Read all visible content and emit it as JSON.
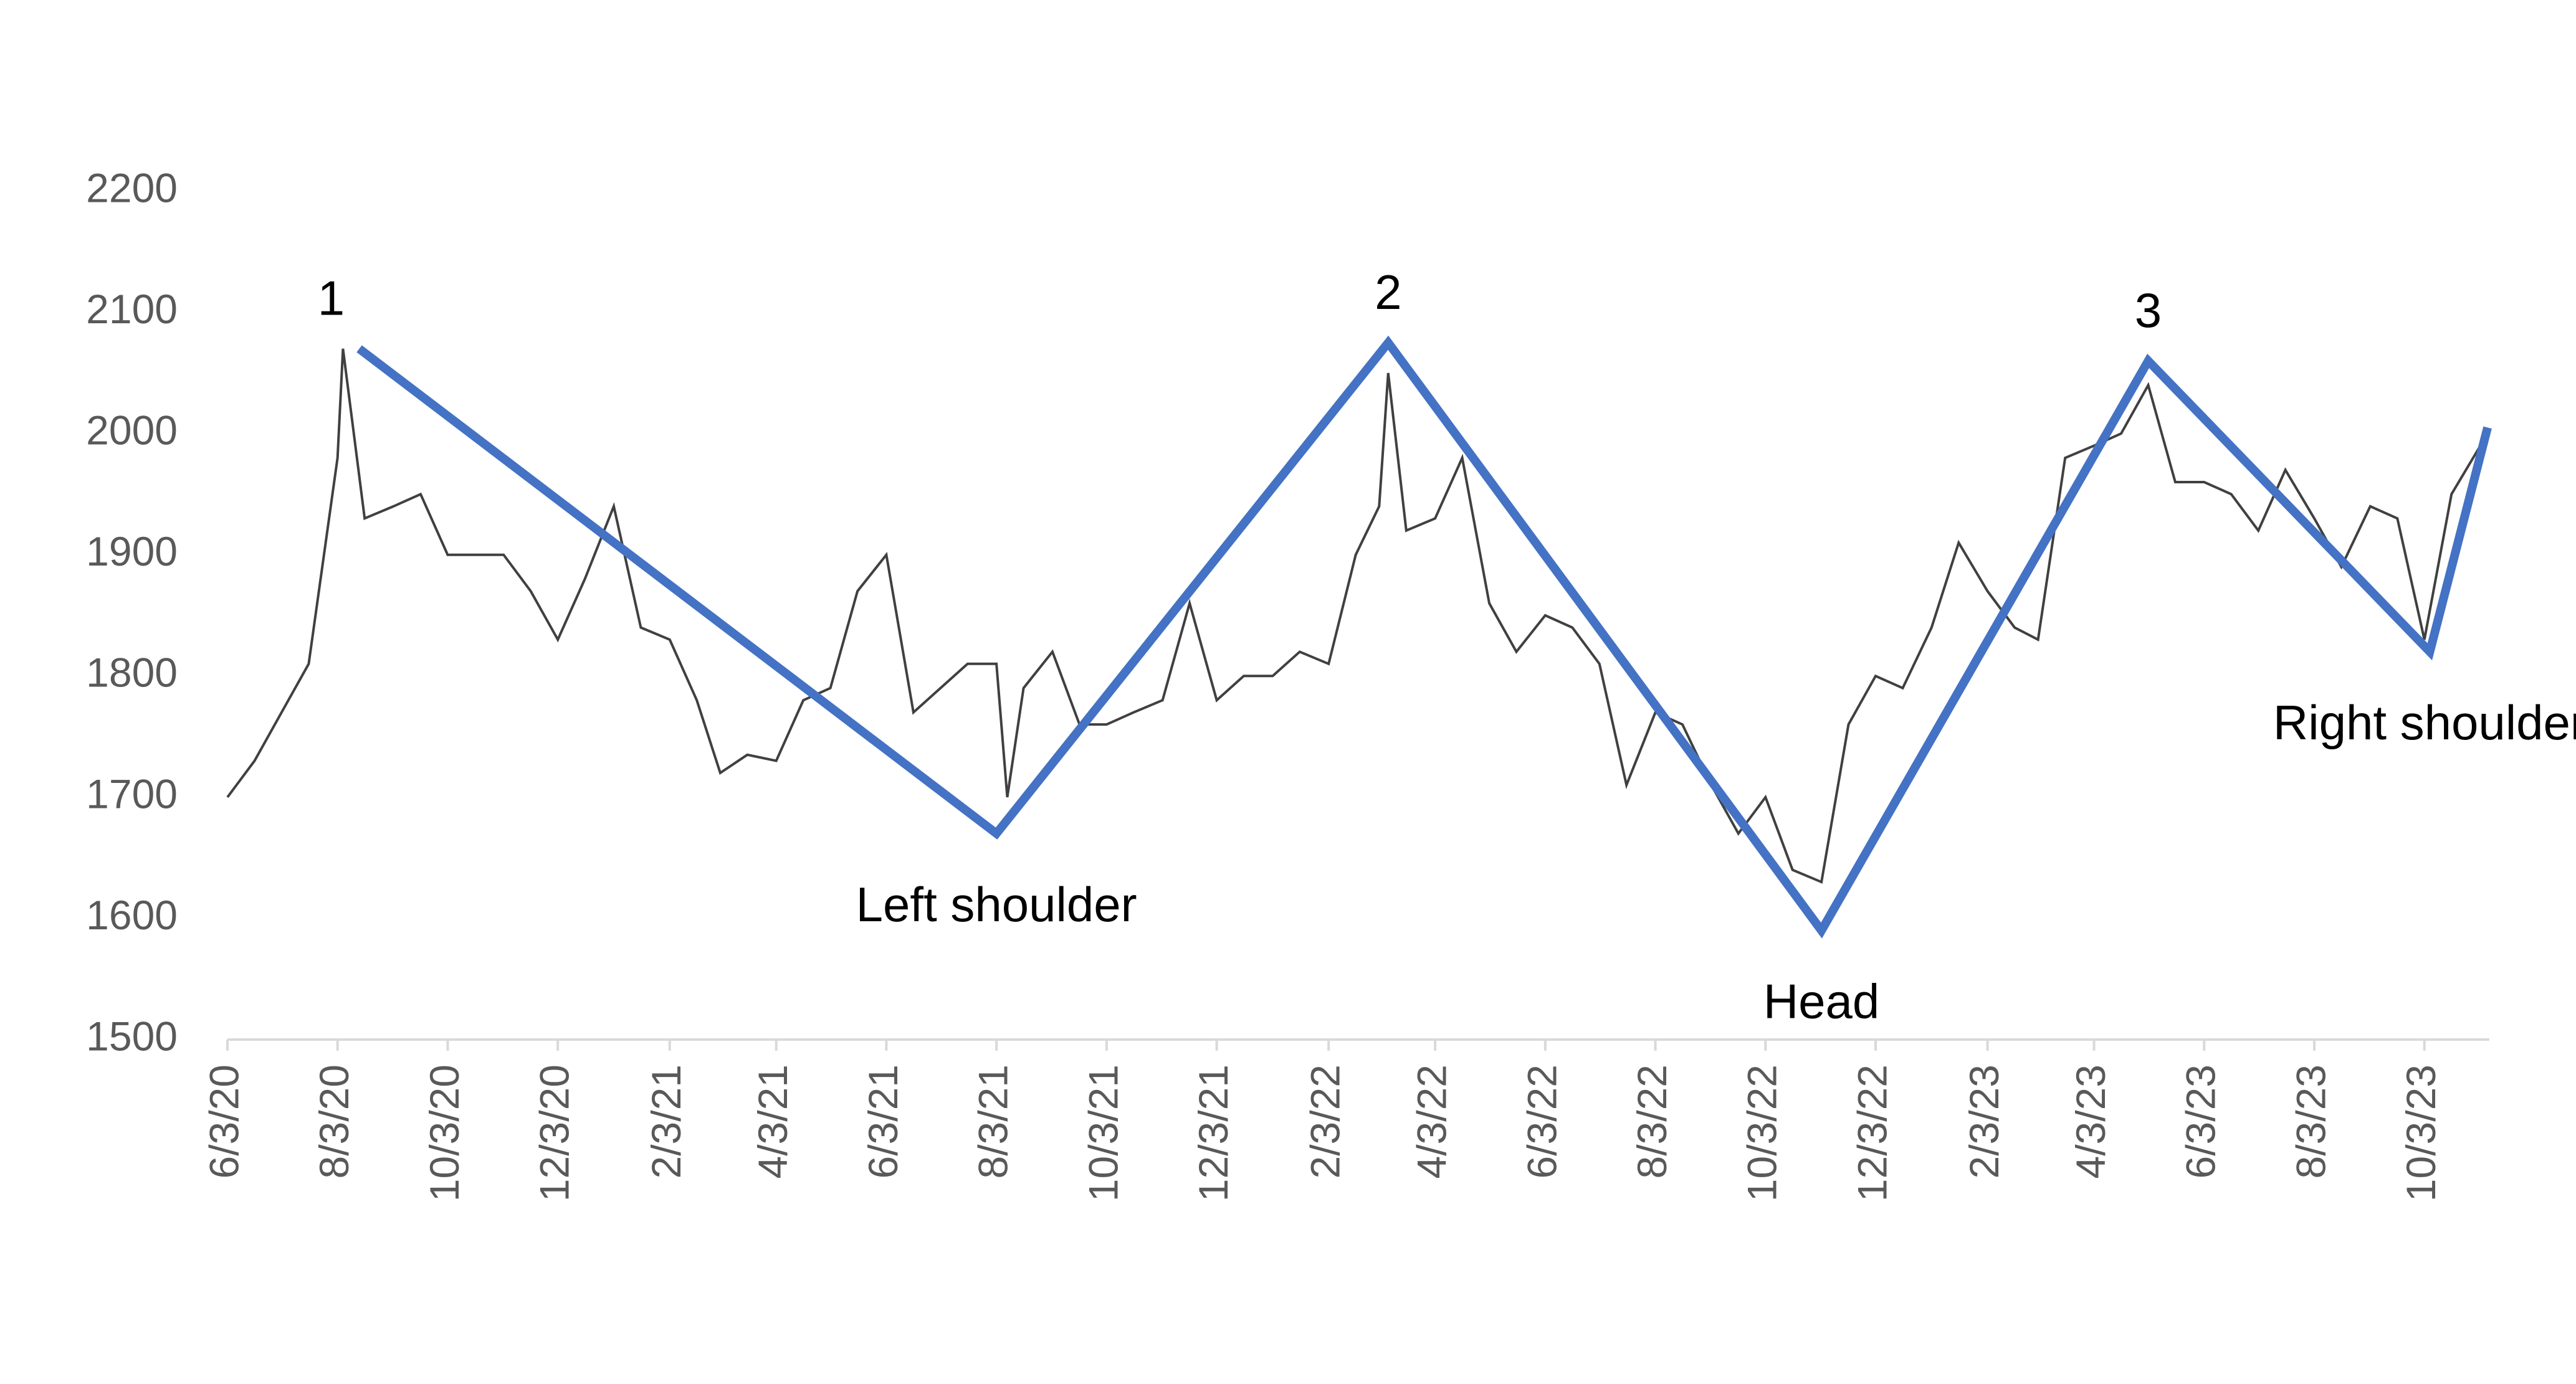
{
  "chart_data": {
    "type": "line",
    "ylim": [
      1500,
      2200
    ],
    "yticks": [
      1500,
      1600,
      1700,
      1800,
      1900,
      2000,
      2100,
      2200
    ],
    "xlim": [
      "6/3/20",
      "11/8/23"
    ],
    "xticks": [
      "6/3/20",
      "8/3/20",
      "10/3/20",
      "12/3/20",
      "2/3/21",
      "4/3/21",
      "6/3/21",
      "8/3/21",
      "10/3/21",
      "12/3/21",
      "2/3/22",
      "4/3/22",
      "6/3/22",
      "8/3/22",
      "10/3/22",
      "12/3/22",
      "2/3/23",
      "4/3/23",
      "6/3/23",
      "8/3/23",
      "10/3/23"
    ],
    "series": [
      {
        "color": "#404040",
        "x": [
          "6/3/20",
          "6/18/20",
          "7/3/20",
          "7/18/20",
          "8/3/20",
          "8/6/20",
          "8/18/20",
          "9/3/20",
          "9/18/20",
          "10/3/20",
          "10/18/20",
          "11/3/20",
          "11/18/20",
          "12/3/20",
          "12/18/20",
          "1/3/21",
          "1/18/21",
          "2/3/21",
          "2/18/21",
          "3/3/21",
          "3/18/21",
          "4/3/21",
          "4/18/21",
          "5/3/21",
          "5/18/21",
          "6/3/21",
          "6/18/21",
          "7/3/21",
          "7/18/21",
          "8/3/21",
          "8/9/21",
          "8/18/21",
          "9/3/21",
          "9/18/21",
          "10/3/21",
          "10/18/21",
          "11/3/21",
          "11/18/21",
          "12/3/21",
          "12/18/21",
          "1/3/22",
          "1/18/22",
          "2/3/22",
          "2/18/22",
          "3/3/22",
          "3/8/22",
          "3/18/22",
          "4/3/22",
          "4/18/22",
          "5/3/22",
          "5/18/22",
          "6/3/22",
          "6/18/22",
          "7/3/22",
          "7/18/22",
          "8/3/22",
          "8/18/22",
          "9/3/22",
          "9/18/22",
          "10/3/22",
          "10/18/22",
          "11/3/22",
          "11/18/22",
          "12/3/22",
          "12/18/22",
          "1/3/23",
          "1/18/23",
          "2/3/23",
          "2/18/23",
          "3/3/23",
          "3/18/23",
          "4/3/23",
          "4/18/23",
          "5/3/23",
          "5/18/23",
          "6/3/23",
          "6/18/23",
          "7/3/23",
          "7/18/23",
          "8/3/23",
          "8/18/23",
          "9/3/23",
          "9/18/23",
          "10/3/23",
          "10/18/23",
          "11/3/23"
        ],
        "values": [
          1700,
          1730,
          1770,
          1810,
          1980,
          2070,
          1930,
          1940,
          1950,
          1900,
          1900,
          1900,
          1870,
          1830,
          1880,
          1940,
          1840,
          1830,
          1780,
          1720,
          1735,
          1730,
          1780,
          1790,
          1870,
          1900,
          1770,
          1790,
          1810,
          1810,
          1700,
          1790,
          1820,
          1760,
          1760,
          1770,
          1780,
          1860,
          1780,
          1800,
          1800,
          1820,
          1810,
          1900,
          1940,
          2050,
          1920,
          1930,
          1980,
          1860,
          1820,
          1850,
          1840,
          1810,
          1710,
          1770,
          1760,
          1710,
          1670,
          1700,
          1640,
          1630,
          1760,
          1800,
          1790,
          1840,
          1910,
          1870,
          1840,
          1830,
          1980,
          1990,
          2000,
          2040,
          1960,
          1960,
          1950,
          1920,
          1970,
          1930,
          1890,
          1940,
          1930,
          1830,
          1950,
          1990
        ]
      },
      {
        "color": "#4472c4",
        "x": [
          "8/15/20",
          "8/3/21",
          "3/8/22",
          "11/3/22",
          "5/3/23",
          "10/6/23",
          "11/7/23"
        ],
        "values": [
          2070,
          1670,
          2075,
          1590,
          2060,
          1820,
          2005
        ]
      }
    ],
    "annotations": [
      "1",
      "Left shoulder",
      "2",
      "Head",
      "3",
      "Right shoulder"
    ]
  }
}
